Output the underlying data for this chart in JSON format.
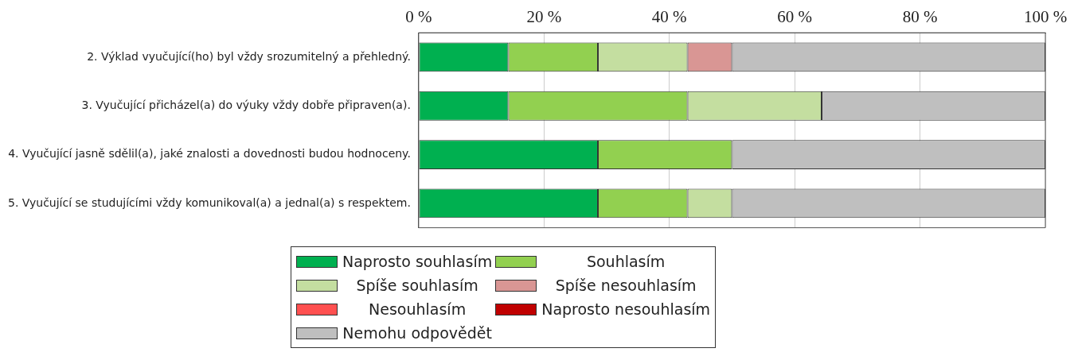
{
  "chart_data": {
    "type": "bar",
    "orientation": "horizontal",
    "stacked": true,
    "categories": [
      "2. Výklad vyučující(ho) byl vždy srozumitelný a přehledný.",
      "3. Vyučující přicházel(a) do výuky vždy dobře připraven(a).",
      "4. Vyučující jasně sdělil(a), jaké znalosti a dovednosti budou hodnoceny.",
      "5. Vyučující se studujícími vždy komunikoval(a) a jednal(a) s respektem."
    ],
    "series": [
      {
        "name": "Naprosto souhlasím",
        "color": "#00b050",
        "values": [
          14.3,
          14.3,
          28.6,
          28.6
        ]
      },
      {
        "name": "Souhlasím",
        "color": "#92d050",
        "values": [
          14.3,
          28.6,
          21.4,
          14.3
        ]
      },
      {
        "name": "Spíše souhlasím",
        "color": "#c4dea0",
        "values": [
          14.3,
          21.4,
          0,
          7.1
        ]
      },
      {
        "name": "Spíše nesouhlasím",
        "color": "#d99694",
        "values": [
          7.1,
          0,
          0,
          0
        ]
      },
      {
        "name": "Nesouhlasím",
        "color": "#ff5050",
        "values": [
          0,
          0,
          0,
          0
        ]
      },
      {
        "name": "Naprosto nesouhlasím",
        "color": "#c00000",
        "values": [
          0,
          0,
          0,
          0
        ]
      },
      {
        "name": "Nemohu odpovědět",
        "color": "#bfbfbf",
        "values": [
          50,
          35.7,
          50,
          50
        ]
      }
    ],
    "xlim": [
      0,
      100
    ],
    "xticks": [
      {
        "value": 0,
        "label": "0 %"
      },
      {
        "value": 20,
        "label": "20 %"
      },
      {
        "value": 40,
        "label": "40 %"
      },
      {
        "value": 60,
        "label": "60 %"
      },
      {
        "value": 80,
        "label": "80 %"
      },
      {
        "value": 100,
        "label": "100 %"
      }
    ],
    "grid": "x",
    "legend": "bottom"
  }
}
